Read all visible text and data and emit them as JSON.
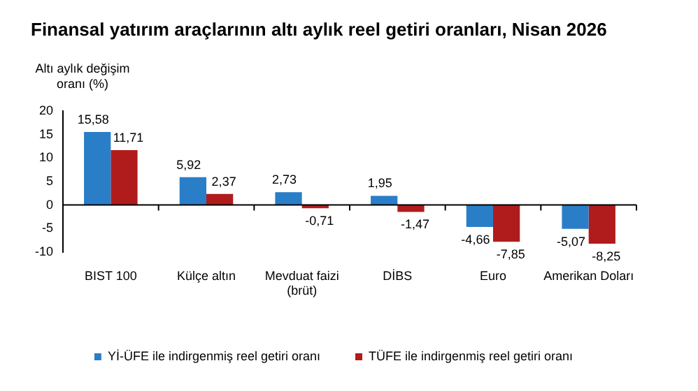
{
  "chart_data": {
    "type": "bar",
    "title": "Finansal yatırım araçlarının altı aylık reel getiri oranları, Nisan 2026",
    "ylabel": "Altı aylık değişim\noranı (%)",
    "categories": [
      "BIST 100",
      "Külçe altın",
      "Mevduat faizi\n(brüt)",
      "DİBS",
      "Euro",
      "Amerikan Doları"
    ],
    "series": [
      {
        "name": "Yİ-ÜFE ile indirgenmiş reel getiri oranı",
        "color": "#2a7ec8",
        "values": [
          15.58,
          5.92,
          2.73,
          1.95,
          -4.66,
          -5.07
        ],
        "value_labels": [
          "15,58",
          "5,92",
          "2,73",
          "1,95",
          "-4,66",
          "-5,07"
        ]
      },
      {
        "name": "TÜFE ile indirgenmiş reel getiri oranı",
        "color": "#b01c1c",
        "values": [
          11.71,
          2.37,
          -0.71,
          -1.47,
          -7.85,
          -8.25
        ],
        "value_labels": [
          "11,71",
          "2,37",
          "-0,71",
          "-1,47",
          "-7,85",
          "-8,25"
        ]
      }
    ],
    "ylim": [
      -10,
      20
    ],
    "yticks": [
      -10,
      -5,
      0,
      5,
      10,
      15,
      20
    ],
    "legend": "bottom"
  }
}
